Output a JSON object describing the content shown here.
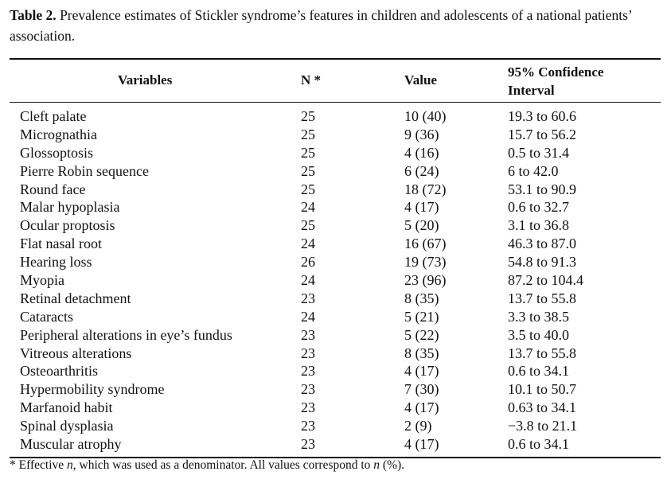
{
  "caption": {
    "label": "Table 2.",
    "text": " Prevalence estimates of Stickler syndrome’s features in children and adolescents of a national patients’ association."
  },
  "table": {
    "headers": {
      "variable": "Variables",
      "n": "N *",
      "value": "Value",
      "ci": "95% Confidence Interval"
    },
    "rows": [
      {
        "variable": "Cleft palate",
        "n": "25",
        "value": "10 (40)",
        "ci": "19.3 to 60.6"
      },
      {
        "variable": "Micrognathia",
        "n": "25",
        "value": "9 (36)",
        "ci": "15.7 to 56.2"
      },
      {
        "variable": "Glossoptosis",
        "n": "25",
        "value": "4 (16)",
        "ci": "0.5 to 31.4"
      },
      {
        "variable": "Pierre Robin sequence",
        "n": "25",
        "value": "6 (24)",
        "ci": "6 to 42.0"
      },
      {
        "variable": "Round face",
        "n": "25",
        "value": "18 (72)",
        "ci": "53.1 to 90.9"
      },
      {
        "variable": "Malar hypoplasia",
        "n": "24",
        "value": "4 (17)",
        "ci": "0.6 to 32.7"
      },
      {
        "variable": "Ocular proptosis",
        "n": "25",
        "value": "5 (20)",
        "ci": "3.1 to 36.8"
      },
      {
        "variable": "Flat nasal root",
        "n": "24",
        "value": "16 (67)",
        "ci": "46.3 to 87.0"
      },
      {
        "variable": "Hearing loss",
        "n": "26",
        "value": "19 (73)",
        "ci": "54.8 to 91.3"
      },
      {
        "variable": "Myopia",
        "n": "24",
        "value": "23 (96)",
        "ci": "87.2 to 104.4"
      },
      {
        "variable": "Retinal detachment",
        "n": "23",
        "value": "8 (35)",
        "ci": "13.7 to 55.8"
      },
      {
        "variable": "Cataracts",
        "n": "24",
        "value": "5 (21)",
        "ci": "3.3 to 38.5"
      },
      {
        "variable": "Peripheral alterations in eye’s fundus",
        "n": "23",
        "value": "5 (22)",
        "ci": "3.5 to 40.0"
      },
      {
        "variable": "Vitreous alterations",
        "n": "23",
        "value": "8 (35)",
        "ci": "13.7 to 55.8"
      },
      {
        "variable": "Osteoarthritis",
        "n": "23",
        "value": "4 (17)",
        "ci": "0.6 to 34.1"
      },
      {
        "variable": "Hypermobility syndrome",
        "n": "23",
        "value": "7 (30)",
        "ci": "10.1 to 50.7"
      },
      {
        "variable": "Marfanoid habit",
        "n": "23",
        "value": "4 (17)",
        "ci": "0.63 to 34.1"
      },
      {
        "variable": "Spinal dysplasia",
        "n": "23",
        "value": "2 (9)",
        "ci": "−3.8 to 21.1"
      },
      {
        "variable": "Muscular atrophy",
        "n": "23",
        "value": "4 (17)",
        "ci": "0.6 to 34.1"
      }
    ]
  },
  "footnote": {
    "star": "* Effective ",
    "n1": "n",
    "mid": ", which was used as a denominator. All values correspond to ",
    "n2": "n",
    "end": " (%)."
  }
}
